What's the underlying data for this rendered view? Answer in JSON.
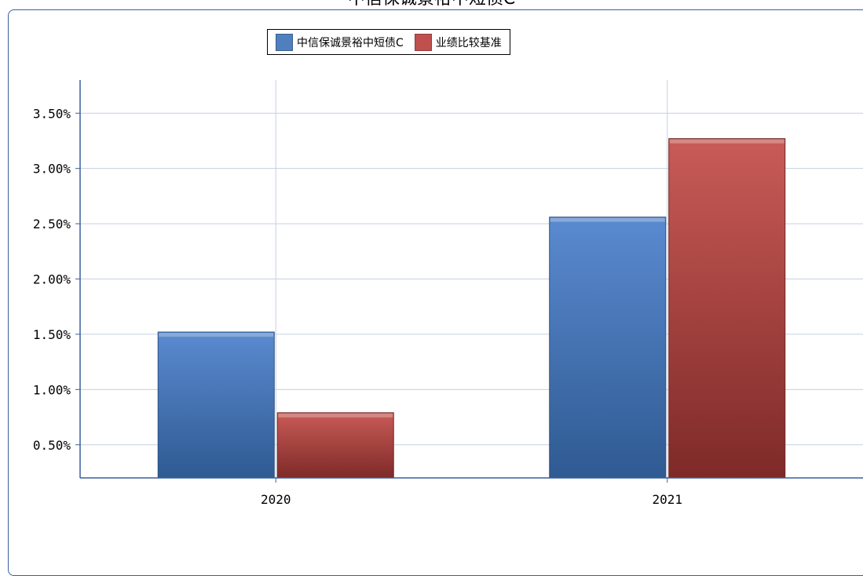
{
  "chart_data": {
    "type": "bar",
    "title": "中信保诚景裕中短债C",
    "categories": [
      "2020",
      "2021"
    ],
    "series": [
      {
        "name": "中信保诚景裕中短债C",
        "values": [
          1.52,
          2.56
        ]
      },
      {
        "name": "业绩比较基准",
        "values": [
          0.79,
          3.27
        ]
      }
    ],
    "ylim": [
      0.2,
      3.8
    ],
    "yticks": [
      "0.50%",
      "1.00%",
      "1.50%",
      "2.00%",
      "2.50%",
      "3.00%",
      "3.50%"
    ],
    "ytick_values": [
      0.5,
      1.0,
      1.5,
      2.0,
      2.5,
      3.0,
      3.5
    ],
    "xlabel": "",
    "ylabel": "",
    "grid": true,
    "legend_position": "top-center",
    "colors": [
      "#4f7fbf",
      "#c0504d"
    ]
  }
}
